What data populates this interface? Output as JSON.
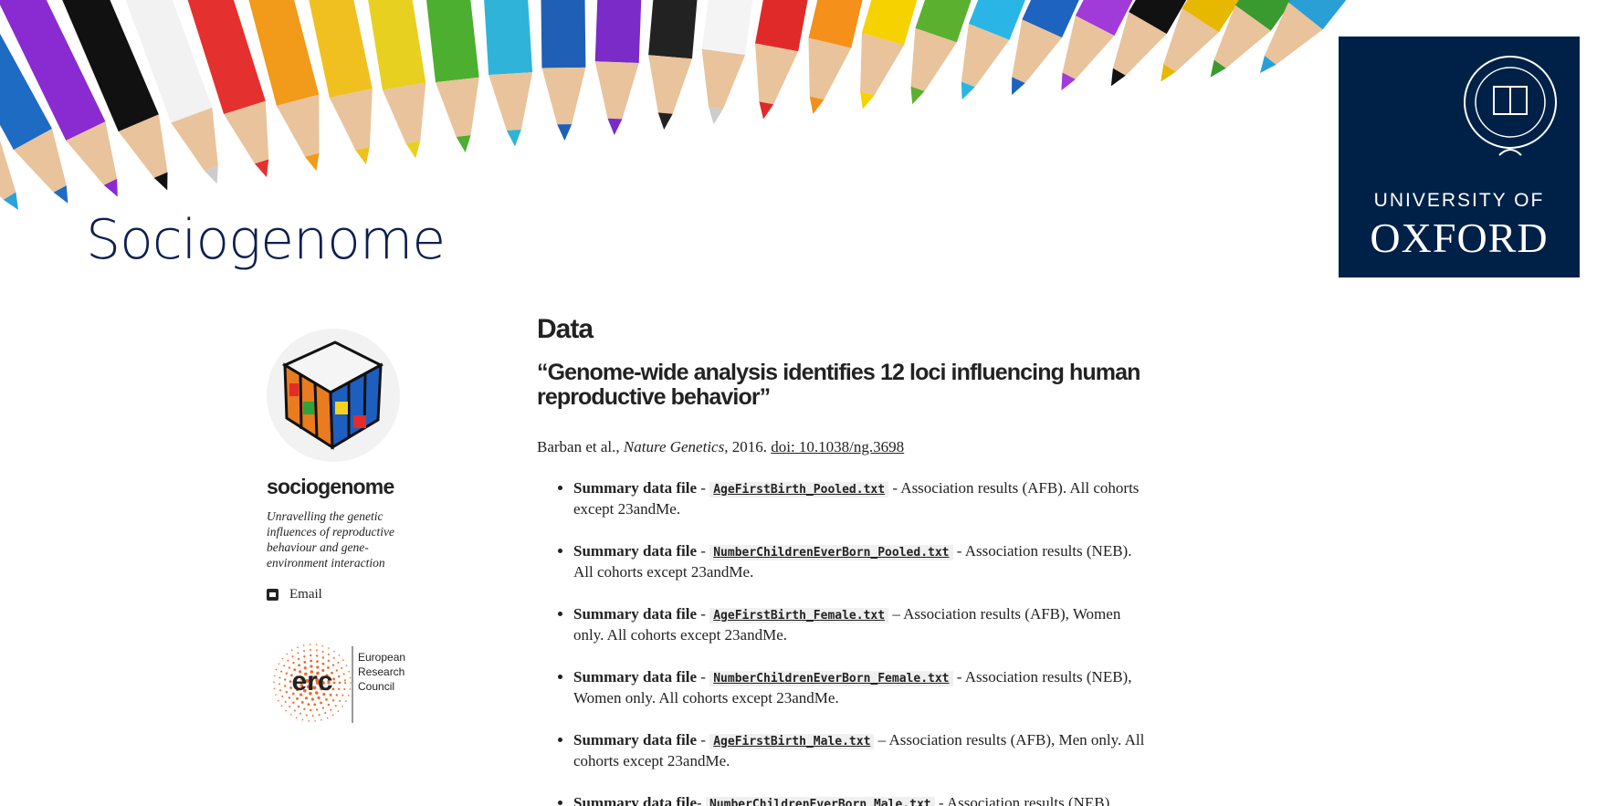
{
  "header": {
    "site_title": "Sociogenome",
    "logo": {
      "line1": "UNIVERSITY OF",
      "line2": "OXFORD"
    }
  },
  "sidebar": {
    "name": "sociogenome",
    "tagline": "Unravelling the genetic influences of reproductive behaviour and gene-environment interaction",
    "email": "Email",
    "erc_mark": "erc",
    "erc_text": [
      "European",
      "Research",
      "Council"
    ]
  },
  "main": {
    "heading": "Data",
    "paper_title": "“Genome-wide analysis identifies 12 loci influencing human reproductive behavior”",
    "citation": {
      "authors": "Barban et al., ",
      "journal": "Nature Genetics",
      "year": ", 2016. ",
      "doi": "doi: 10.1038/ng.3698"
    },
    "items": [
      {
        "label": "Summary data file",
        "sep": " - ",
        "file": "AgeFirstBirth_Pooled.txt",
        "desc": " - Association results (AFB). All cohorts except 23andMe."
      },
      {
        "label": "Summary data file",
        "sep": " - ",
        "file": "NumberChildrenEverBorn_Pooled.txt",
        "desc": " - Association results (NEB). All cohorts except 23andMe."
      },
      {
        "label": "Summary data file",
        "sep": " - ",
        "file": "AgeFirstBirth_Female.txt",
        "desc": " – Association results (AFB), Women only. All cohorts except 23andMe."
      },
      {
        "label": "Summary data file",
        "sep": " - ",
        "file": "NumberChildrenEverBorn_Female.txt",
        "desc": " - Association results (NEB), Women only. All cohorts except 23andMe."
      },
      {
        "label": "Summary data file",
        "sep": " - ",
        "file": "AgeFirstBirth_Male.txt",
        "desc": " – Association results (AFB), Men only. All cohorts except 23andMe."
      },
      {
        "label": "Summary data file",
        "sep": "- ",
        "file": "NumberChildrenEverBorn_Male.txt",
        "desc": " - Association results (NEB),"
      }
    ]
  }
}
